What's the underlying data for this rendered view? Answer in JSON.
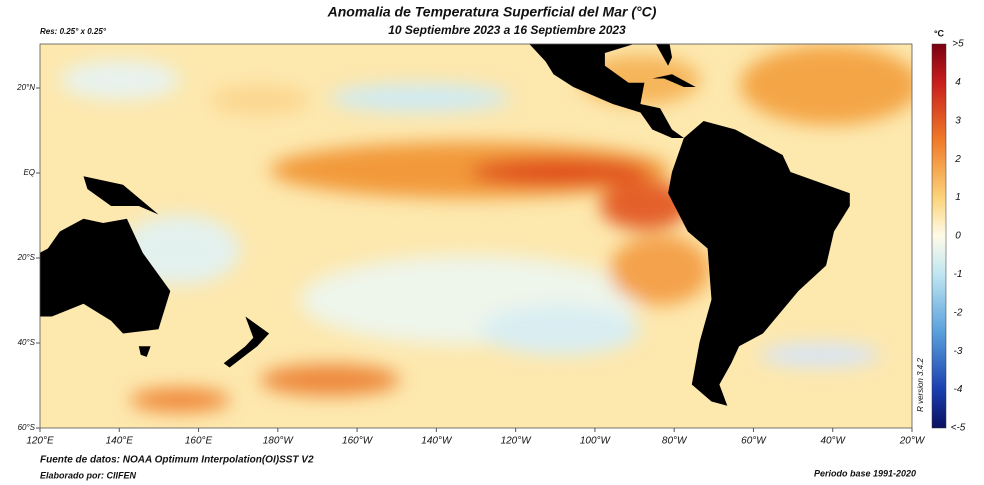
{
  "title": "Anomalia de Temperatura Superficial del Mar (°C)",
  "subtitle": "10 Septiembre 2023 a 16 Septiembre 2023",
  "resolution": "Res: 0.25° x 0.25°",
  "longitude_labels": [
    "120°E",
    "140°E",
    "160°E",
    "180°W",
    "160°W",
    "140°W",
    "120°W",
    "100°W",
    "80°W",
    "60°W",
    "40°W",
    "20°W"
  ],
  "latitude_labels": [
    "20°N",
    "EQ",
    "20°S",
    "40°S",
    "60°S"
  ],
  "colorbar": {
    "unit": "°C",
    "labels": [
      ">5",
      "4",
      "3",
      "2",
      "1",
      "0",
      "-1",
      "-2",
      "-3",
      "-4",
      "<-5"
    ]
  },
  "footer": {
    "source": "Fuente de datos: NOAA Optimum Interpolation(OI)SST V2",
    "author": "Elaborado por: CIIFEN",
    "period": "Periodo base 1991-2020"
  },
  "version": "R version 3.4.2"
}
